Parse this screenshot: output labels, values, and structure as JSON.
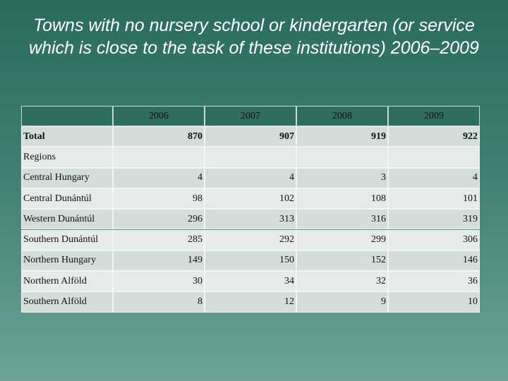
{
  "title": "Towns with no nursery school or kindergarten (or service which is close to the task of these institutions) 2006–2009",
  "table": {
    "years": [
      "2006",
      "2007",
      "2008",
      "2009"
    ],
    "rows": [
      {
        "label": "Total",
        "values": [
          870,
          907,
          919,
          922
        ]
      },
      {
        "label": "Regions"
      },
      {
        "label": "Central Hungary",
        "values": [
          4,
          4,
          3,
          4
        ]
      },
      {
        "label": "Central Dunántúl",
        "values": [
          98,
          102,
          108,
          101
        ]
      },
      {
        "label": "Western Dunántúl",
        "values": [
          296,
          313,
          316,
          319
        ]
      },
      {
        "label": "Southern Dunántúl",
        "values": [
          285,
          292,
          299,
          306
        ]
      },
      {
        "label": "Northern Hungary",
        "values": [
          149,
          150,
          152,
          146
        ]
      },
      {
        "label": "Northern Alföld",
        "values": [
          30,
          34,
          32,
          36
        ]
      },
      {
        "label": "Southern Alföld",
        "values": [
          8,
          12,
          9,
          10
        ]
      }
    ]
  }
}
